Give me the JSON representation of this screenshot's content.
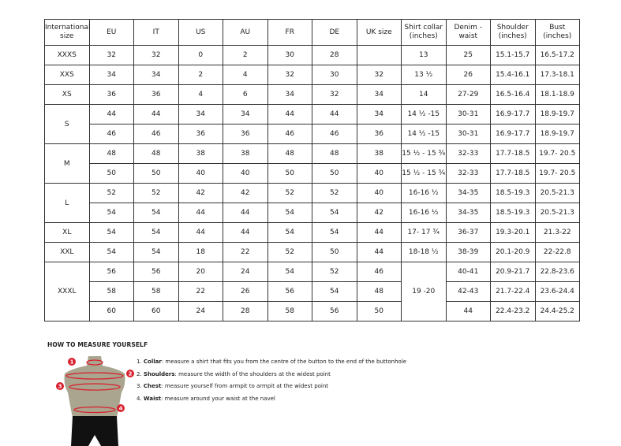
{
  "table": {
    "headers": [
      "International size",
      "EU",
      "IT",
      "US",
      "AU",
      "FR",
      "DE",
      "UK size",
      "Shirt collar (inches)",
      "Denim - waist",
      "Shoulder (inches)",
      "Bust (inches)"
    ],
    "groups": [
      {
        "size": "XXXS",
        "rows": [
          [
            "32",
            "32",
            "0",
            "2",
            "30",
            "28",
            "",
            "13",
            "25",
            "15.1-15.7",
            "16.5-17.2"
          ]
        ]
      },
      {
        "size": "XXS",
        "rows": [
          [
            "34",
            "34",
            "2",
            "4",
            "32",
            "30",
            "32",
            "13 ½",
            "26",
            "15.4-16.1",
            "17.3-18.1"
          ]
        ]
      },
      {
        "size": "XS",
        "rows": [
          [
            "36",
            "36",
            "4",
            "6",
            "34",
            "32",
            "34",
            "14",
            "27-29",
            "16.5-16.4",
            "18.1-18.9"
          ]
        ]
      },
      {
        "size": "S",
        "rows": [
          [
            "44",
            "44",
            "34",
            "34",
            "44",
            "44",
            "34",
            "14 ½ -15",
            "30-31",
            "16.9-17.7",
            "18.9-19.7"
          ],
          [
            "46",
            "46",
            "36",
            "36",
            "46",
            "46",
            "36",
            "14 ½ -15",
            "30-31",
            "16.9-17.7",
            "18.9-19.7"
          ]
        ]
      },
      {
        "size": "M",
        "rows": [
          [
            "48",
            "48",
            "38",
            "38",
            "48",
            "48",
            "38",
            "15 ½ - 15 ¾",
            "32-33",
            "17.7-18.5",
            "19.7- 20.5"
          ],
          [
            "50",
            "50",
            "40",
            "40",
            "50",
            "50",
            "40",
            "15 ½ - 15 ¾",
            "32-33",
            "17.7-18.5",
            "19.7- 20.5"
          ]
        ]
      },
      {
        "size": "L",
        "rows": [
          [
            "52",
            "52",
            "42",
            "42",
            "52",
            "52",
            "40",
            "16-16 ½",
            "34-35",
            "18.5-19.3",
            "20.5-21.3"
          ],
          [
            "54",
            "54",
            "44",
            "44",
            "54",
            "54",
            "42",
            "16-16 ½",
            "34-35",
            "18.5-19.3",
            "20.5-21.3"
          ]
        ]
      },
      {
        "size": "XL",
        "rows": [
          [
            "54",
            "54",
            "44",
            "44",
            "54",
            "54",
            "44",
            "17- 17 ¾",
            "36-37",
            "19.3-20.1",
            "21.3-22"
          ]
        ]
      },
      {
        "size": "XXL",
        "rows": [
          [
            "54",
            "54",
            "18",
            "22",
            "52",
            "50",
            "44",
            "18-18 ½",
            "38-39",
            "20.1-20.9",
            "22-22.8"
          ]
        ]
      },
      {
        "size": "XXXL",
        "collar": "19 -20",
        "rows": [
          [
            "56",
            "56",
            "20",
            "24",
            "54",
            "52",
            "46",
            null,
            "40-41",
            "20.9-21.7",
            "22.8-23.6"
          ],
          [
            "58",
            "58",
            "22",
            "26",
            "56",
            "54",
            "48",
            null,
            "42-43",
            "21.7-22.4",
            "23.6-24.4"
          ],
          [
            "60",
            "60",
            "24",
            "28",
            "58",
            "56",
            "50",
            null,
            "44",
            "22.4-23.2",
            "24.4-25.2"
          ]
        ]
      }
    ]
  },
  "guide": {
    "title": "HOW TO MEASURE YOURSELF",
    "markers": [
      "1",
      "2",
      "3",
      "4"
    ],
    "steps": [
      {
        "num": "1.",
        "term": "Collar",
        "text": ": measure a shirt that fits you from the centre of the button to the end of the buttonhole"
      },
      {
        "num": "2.",
        "term": "Shoulders",
        "text": ": measure the width of the shoulders at the widest point"
      },
      {
        "num": "3.",
        "term": "Chest",
        "text": ": measure yourself from armpit to armpit at the widest point"
      },
      {
        "num": "4.",
        "term": "Waist",
        "text": ": measure around your waist at the navel"
      }
    ],
    "colors": {
      "marker": "#d9202e",
      "skin": "#a9a58f",
      "shorts": "#111111"
    }
  }
}
